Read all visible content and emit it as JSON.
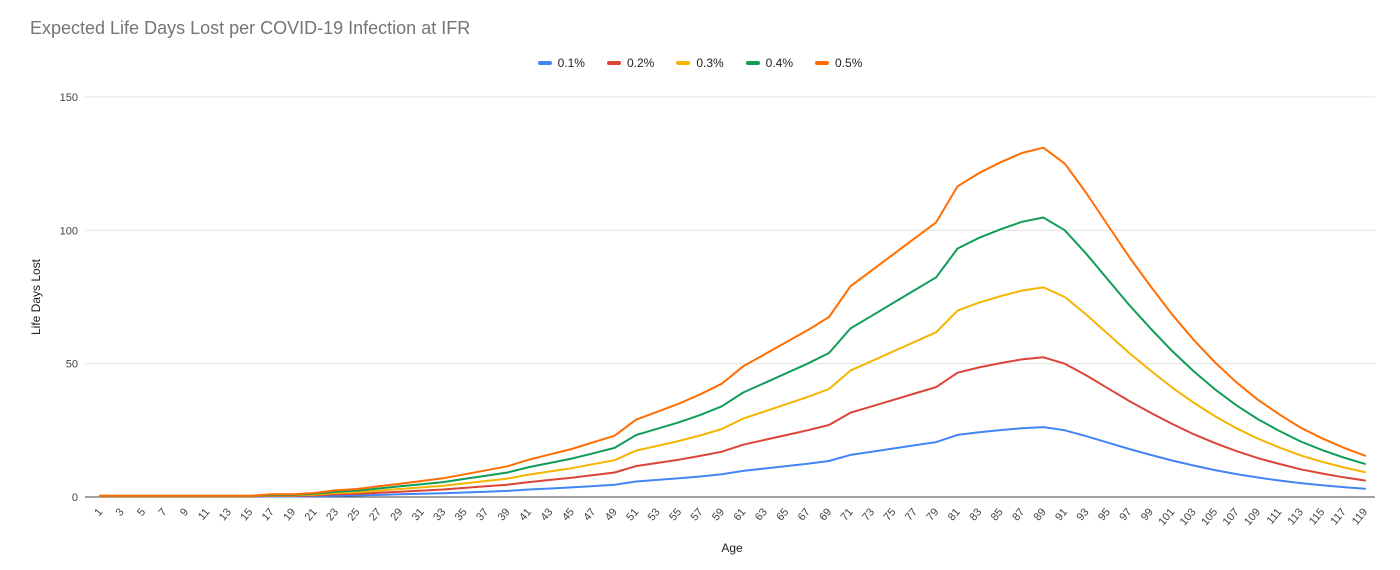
{
  "chart_data": {
    "type": "line",
    "title": "Expected Life Days Lost per COVID-19 Infection at IFR",
    "xlabel": "Age",
    "ylabel": "Life Days Lost",
    "ylim": [
      0,
      150
    ],
    "yticks": [
      0,
      50,
      100,
      150
    ],
    "grid": true,
    "legend_position": "top",
    "x": [
      1,
      3,
      5,
      7,
      9,
      11,
      13,
      15,
      17,
      19,
      21,
      23,
      25,
      27,
      29,
      31,
      33,
      35,
      37,
      39,
      41,
      43,
      45,
      47,
      49,
      51,
      53,
      55,
      57,
      59,
      61,
      63,
      65,
      67,
      69,
      71,
      73,
      75,
      77,
      79,
      81,
      83,
      85,
      87,
      89,
      91,
      93,
      95,
      97,
      99,
      101,
      103,
      105,
      107,
      109,
      111,
      113,
      115,
      117,
      119
    ],
    "series": [
      {
        "name": "0.1%",
        "color": "#4285F4",
        "values": [
          0.1,
          0.1,
          0.1,
          0.1,
          0.1,
          0.1,
          0.1,
          0.1,
          0.2,
          0.2,
          0.3,
          0.5,
          0.6,
          0.8,
          1.0,
          1.2,
          1.4,
          1.7,
          2.0,
          2.3,
          2.8,
          3.2,
          3.6,
          4.1,
          4.6,
          5.8,
          6.4,
          7.0,
          7.7,
          8.5,
          9.8,
          10.7,
          11.6,
          12.5,
          13.5,
          15.8,
          17.0,
          18.2,
          19.4,
          20.6,
          23.3,
          24.3,
          25.1,
          25.8,
          26.2,
          25.0,
          22.8,
          20.4,
          18.0,
          15.8,
          13.7,
          11.8,
          10.1,
          8.6,
          7.3,
          6.2,
          5.2,
          4.4,
          3.7,
          3.1
        ]
      },
      {
        "name": "0.2%",
        "color": "#DB4437",
        "values": [
          0.2,
          0.2,
          0.2,
          0.2,
          0.2,
          0.2,
          0.2,
          0.2,
          0.4,
          0.4,
          0.6,
          1.0,
          1.2,
          1.6,
          2.0,
          2.4,
          2.8,
          3.4,
          4.0,
          4.6,
          5.6,
          6.4,
          7.2,
          8.2,
          9.2,
          11.6,
          12.8,
          14.0,
          15.4,
          17.0,
          19.6,
          21.4,
          23.2,
          25.0,
          27.0,
          31.6,
          34.0,
          36.4,
          38.8,
          41.2,
          46.6,
          48.6,
          50.2,
          51.6,
          52.4,
          50.0,
          45.6,
          40.8,
          36.0,
          31.6,
          27.4,
          23.6,
          20.2,
          17.2,
          14.6,
          12.4,
          10.4,
          8.8,
          7.4,
          6.2
        ]
      },
      {
        "name": "0.3%",
        "color": "#F4B400",
        "values": [
          0.3,
          0.3,
          0.3,
          0.3,
          0.3,
          0.3,
          0.3,
          0.3,
          0.6,
          0.6,
          0.9,
          1.5,
          1.8,
          2.4,
          3.0,
          3.6,
          4.2,
          5.1,
          6.0,
          6.9,
          8.4,
          9.6,
          10.8,
          12.3,
          13.8,
          17.4,
          19.2,
          21.0,
          23.1,
          25.5,
          29.4,
          32.1,
          34.8,
          37.5,
          40.5,
          47.4,
          51.0,
          54.6,
          58.2,
          61.8,
          69.9,
          72.9,
          75.3,
          77.4,
          78.6,
          75.0,
          68.4,
          61.2,
          54.0,
          47.4,
          41.1,
          35.4,
          30.3,
          25.8,
          21.9,
          18.6,
          15.6,
          13.2,
          11.1,
          9.3
        ]
      },
      {
        "name": "0.4%",
        "color": "#0F9D58",
        "values": [
          0.4,
          0.4,
          0.4,
          0.4,
          0.4,
          0.4,
          0.4,
          0.4,
          0.8,
          0.8,
          1.2,
          2.0,
          2.4,
          3.2,
          4.0,
          4.8,
          5.6,
          6.8,
          8.0,
          9.2,
          11.2,
          12.8,
          14.4,
          16.4,
          18.4,
          23.2,
          25.6,
          28.0,
          30.8,
          34.0,
          39.2,
          42.8,
          46.4,
          50.0,
          54.0,
          63.2,
          68.0,
          72.8,
          77.6,
          82.4,
          93.2,
          97.2,
          100.4,
          103.2,
          104.8,
          100.0,
          91.2,
          81.6,
          72.0,
          63.2,
          54.8,
          47.2,
          40.4,
          34.4,
          29.2,
          24.8,
          20.8,
          17.6,
          14.8,
          12.4
        ]
      },
      {
        "name": "0.5%",
        "color": "#FF6D01",
        "values": [
          0.5,
          0.5,
          0.5,
          0.5,
          0.5,
          0.5,
          0.5,
          0.5,
          1.0,
          1.0,
          1.5,
          2.5,
          3.0,
          4.0,
          5.0,
          6.0,
          7.0,
          8.5,
          10.0,
          11.5,
          14.0,
          16.0,
          18.0,
          20.5,
          23.0,
          29.0,
          32.0,
          35.0,
          38.5,
          42.5,
          49.0,
          53.5,
          58.0,
          62.5,
          67.5,
          79.0,
          85.0,
          91.0,
          97.0,
          103.0,
          116.5,
          121.5,
          125.5,
          129.0,
          131.0,
          125.0,
          114.0,
          102.0,
          90.0,
          79.0,
          68.5,
          59.0,
          50.5,
          43.0,
          36.5,
          31.0,
          26.0,
          22.0,
          18.5,
          15.5
        ]
      }
    ]
  }
}
